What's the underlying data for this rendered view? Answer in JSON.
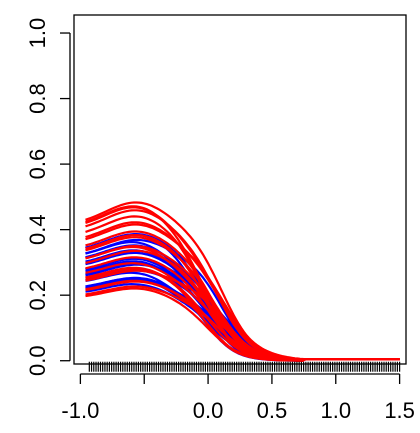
{
  "chart_data": {
    "type": "line",
    "title": "",
    "xlabel": "",
    "ylabel": "",
    "xlim": [
      -1.0,
      1.5
    ],
    "ylim": [
      0.0,
      1.0
    ],
    "grid": false,
    "legend": "none",
    "x_ticks": [
      -1.0,
      -0.5,
      0.0,
      0.5,
      1.0,
      1.5
    ],
    "x_tick_labels": [
      "-1.0",
      "",
      "0.0",
      "0.5",
      "1.0",
      "1.5"
    ],
    "y_ticks": [
      0.0,
      0.2,
      0.4,
      0.6,
      0.8,
      1.0
    ],
    "y_tick_labels": [
      "0.0",
      "0.2",
      "0.4",
      "0.6",
      "0.8",
      "1.0"
    ],
    "red_color": "#ff0000",
    "blue_color": "#0000ff",
    "red_series_count": 22,
    "blue_series_count": 18,
    "red_start_range": [
      0.18,
      0.42
    ],
    "blue_start_range": [
      0.2,
      0.33
    ],
    "series_x_start": -0.96,
    "red_x_end": 1.5,
    "blue_x_end": 0.8,
    "rug_x_range": [
      -0.93,
      1.5
    ],
    "rug_count": 140
  }
}
